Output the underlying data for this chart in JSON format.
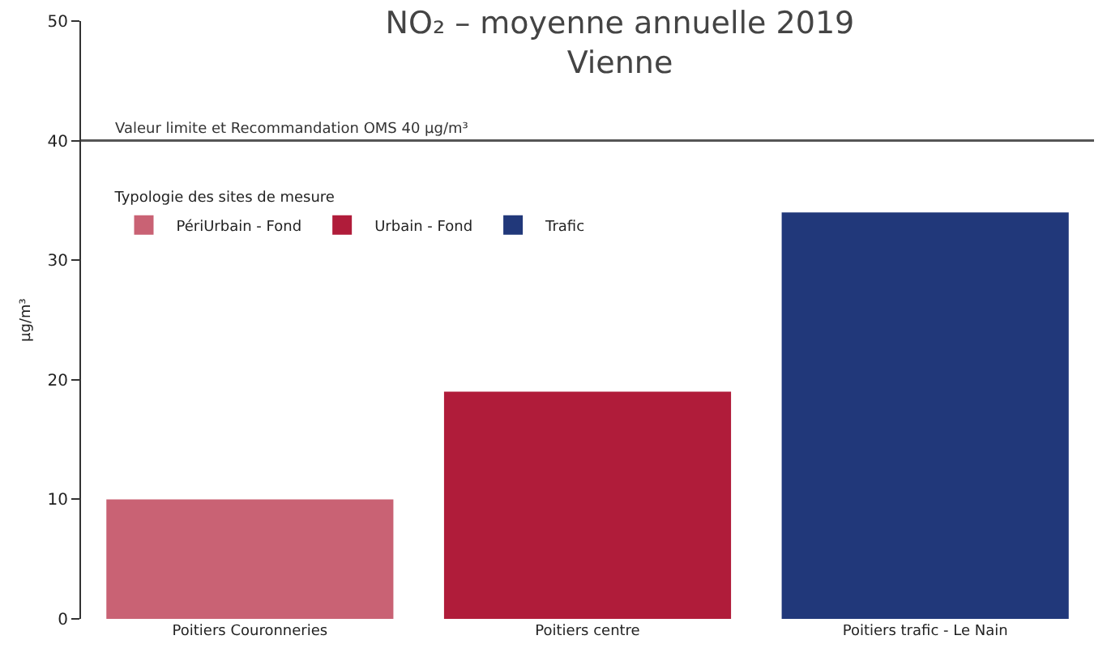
{
  "chart_data": {
    "type": "bar",
    "title": "NO₂ – moyenne annuelle 2019",
    "subtitle": "Vienne",
    "ylabel": "µg/m³",
    "legend_title": "Typologie des sites de mesure",
    "categories": [
      "Poitiers Couronneries",
      "Poitiers centre",
      "Poitiers trafic - Le Nain"
    ],
    "series": [
      {
        "name": "PériUrbain - Fond",
        "color": "#c96274",
        "values": [
          10,
          null,
          null
        ]
      },
      {
        "name": "Urbain - Fond",
        "color": "#b01c3a",
        "values": [
          null,
          19,
          null
        ]
      },
      {
        "name": "Trafic",
        "color": "#21387a",
        "values": [
          null,
          null,
          34
        ]
      }
    ],
    "ylim": [
      0,
      50
    ],
    "yticks": [
      0,
      10,
      20,
      30,
      40,
      50
    ],
    "legend": "top left",
    "ref_lines": [
      {
        "axis": "y",
        "value": 40,
        "label": "Valeur limite et Recommandation OMS 40 µg/m³",
        "color": "#555555"
      }
    ]
  }
}
